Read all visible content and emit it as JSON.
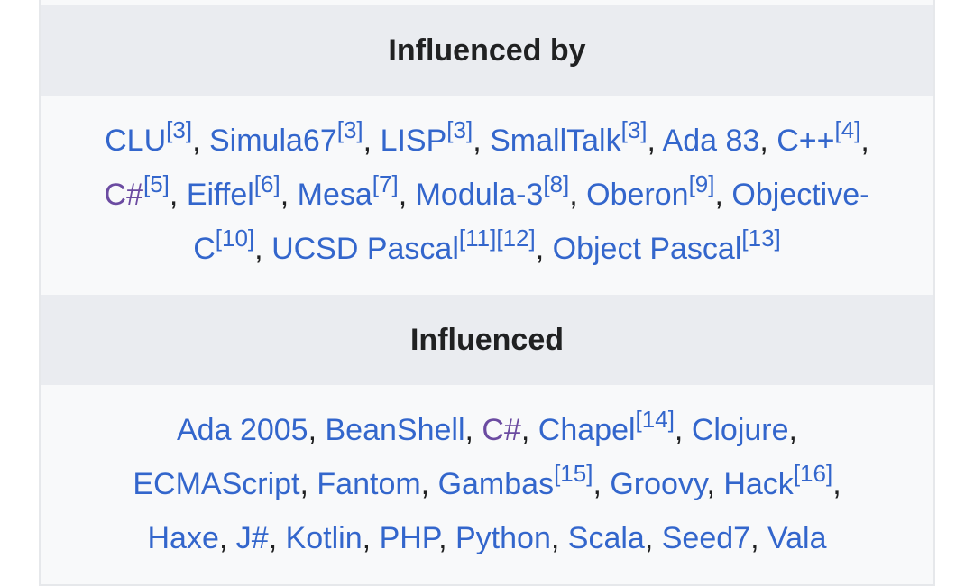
{
  "sections": [
    {
      "title": "Influenced by",
      "lines": [
        [
          {
            "t": "CLU",
            "r": "[3]",
            "s": ","
          },
          {
            "t": "Simula67",
            "r": "[3]",
            "s": ","
          },
          {
            "t": "LISP",
            "r": "[3]",
            "s": ","
          },
          {
            "t": "SmallTalk",
            "r": "[3]",
            "s": ","
          },
          {
            "t": "Ada 83",
            "s": ","
          },
          {
            "t": "C++",
            "r": "[4]",
            "s": ","
          }
        ],
        [
          {
            "t": "C#",
            "r": "[5]",
            "s": ",",
            "visited": true
          },
          {
            "t": "Eiffel",
            "r": "[6]",
            "s": ","
          },
          {
            "t": "Mesa",
            "r": "[7]",
            "s": ","
          },
          {
            "t": "Modula-3",
            "r": "[8]",
            "s": ","
          },
          {
            "t": "Oberon",
            "r": "[9]",
            "s": ","
          },
          {
            "t": "Objective-"
          }
        ],
        [
          {
            "t": "C",
            "r": "[10]",
            "s": ","
          },
          {
            "t": "UCSD Pascal",
            "r": "[11][12]",
            "s": ","
          },
          {
            "t": "Object Pascal",
            "r": "[13]"
          }
        ]
      ]
    },
    {
      "title": "Influenced",
      "lines": [
        [
          {
            "t": "Ada 2005",
            "s": ","
          },
          {
            "t": "BeanShell",
            "s": ","
          },
          {
            "t": "C#",
            "s": ",",
            "visited": true
          },
          {
            "t": "Chapel",
            "r": "[14]",
            "s": ","
          },
          {
            "t": "Clojure",
            "s": ","
          }
        ],
        [
          {
            "t": "ECMAScript",
            "s": ","
          },
          {
            "t": "Fantom",
            "s": ","
          },
          {
            "t": "Gambas",
            "r": "[15]",
            "s": ","
          },
          {
            "t": "Groovy",
            "s": ","
          },
          {
            "t": "Hack",
            "r": "[16]",
            "s": ","
          }
        ],
        [
          {
            "t": "Haxe",
            "s": ","
          },
          {
            "t": "J#",
            "s": ","
          },
          {
            "t": "Kotlin",
            "s": ","
          },
          {
            "t": "PHP",
            "s": ","
          },
          {
            "t": "Python",
            "s": ","
          },
          {
            "t": "Scala",
            "s": ","
          },
          {
            "t": "Seed7",
            "s": ","
          },
          {
            "t": "Vala"
          }
        ]
      ]
    }
  ]
}
